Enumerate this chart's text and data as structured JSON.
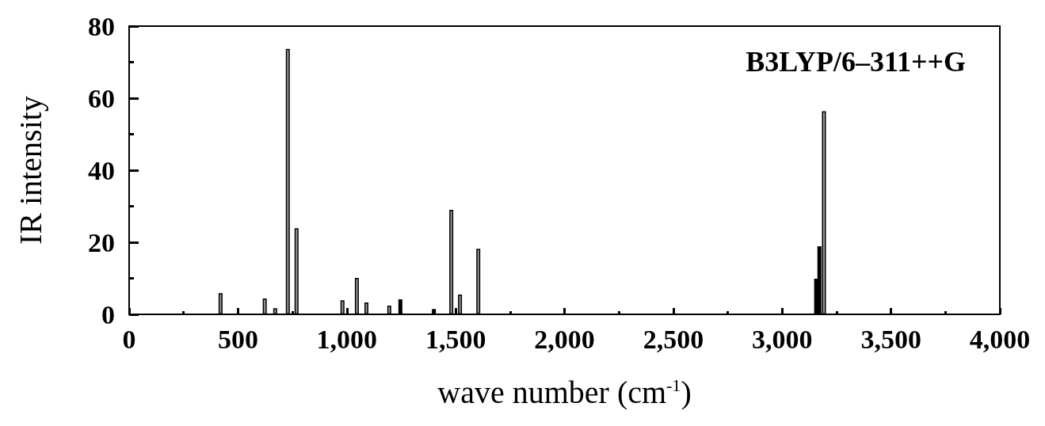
{
  "chart_data": {
    "type": "bar",
    "xlabel": "wave number (cm$^{-1}$)",
    "ylabel": "IR intensity",
    "annotations": [
      "B3LYP/6–311++G"
    ],
    "x": [
      420,
      623,
      671,
      729,
      769,
      980,
      1046,
      1090,
      1195,
      1246,
      1400,
      1480,
      1520,
      1604,
      3156,
      3171,
      3192
    ],
    "values": [
      5.9,
      4.4,
      1.7,
      73.7,
      23.9,
      3.9,
      10.1,
      3.3,
      2.4,
      4.2,
      1.5,
      29.0,
      5.5,
      18.2,
      9.9,
      18.9,
      56.4
    ],
    "colors": [
      "#9a9a9a",
      "#9a9a9a",
      "#9a9a9a",
      "#9a9a9a",
      "#9a9a9a",
      "#9a9a9a",
      "#9a9a9a",
      "#9a9a9a",
      "#9a9a9a",
      "#000000",
      "#000000",
      "#9a9a9a",
      "#9a9a9a",
      "#9a9a9a",
      "#000000",
      "#000000",
      "#9a9a9a"
    ],
    "xlim": [
      0,
      4000
    ],
    "xticks": [
      0,
      {
        "value": 250,
        "label": null
      },
      500,
      {
        "value": 750,
        "label": null
      },
      {
        "value": 1000,
        "label": "1,000"
      },
      {
        "value": 1250,
        "label": null
      },
      {
        "value": 1500,
        "label": "1,500"
      },
      {
        "value": 1750,
        "label": null
      },
      {
        "value": 2000,
        "label": "2,000"
      },
      {
        "value": 2250,
        "label": null
      },
      {
        "value": 2500,
        "label": "2,500"
      },
      {
        "value": 2750,
        "label": null
      },
      {
        "value": 3000,
        "label": "3,000"
      },
      {
        "value": 3250,
        "label": null
      },
      {
        "value": 3500,
        "label": "3,500"
      },
      {
        "value": 3750,
        "label": null
      },
      {
        "value": 4000,
        "label": "4,000"
      }
    ],
    "ylim": [
      0,
      80
    ],
    "yticks": [
      0,
      {
        "value": 10,
        "label": null
      },
      20,
      {
        "value": 30,
        "label": null
      },
      40,
      {
        "value": 50,
        "label": null
      },
      60,
      {
        "value": 70,
        "label": null
      },
      80
    ],
    "grid": false
  }
}
